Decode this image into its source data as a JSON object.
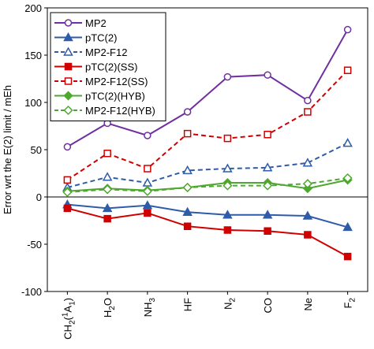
{
  "chart_data": {
    "type": "line",
    "ylabel": "Error wrt the E(2) limit / mEh",
    "ylim": [
      -100,
      200
    ],
    "ytick_step": 50,
    "grid": false,
    "legend_position": "top-left",
    "categories": [
      {
        "base": "CH",
        "sub": "2",
        "tail": "(",
        "sup": "1",
        "tail2": "A",
        "sub2": "1",
        "tail3": ")"
      },
      {
        "base": "H",
        "sub": "2",
        "tail": "O"
      },
      {
        "base": "NH",
        "sub": "3"
      },
      {
        "base": "HF"
      },
      {
        "base": "N",
        "sub": "2"
      },
      {
        "base": "CO"
      },
      {
        "base": "Ne"
      },
      {
        "base": "F",
        "sub": "2"
      }
    ],
    "series": [
      {
        "name": "MP2",
        "color": "#7030a0",
        "marker": "circle",
        "filled": false,
        "dashed": false,
        "values": [
          53,
          78,
          65,
          90,
          127,
          129,
          102,
          177
        ]
      },
      {
        "name": "pTC(2)",
        "color": "#2e5ca8",
        "marker": "triangle",
        "filled": true,
        "dashed": false,
        "values": [
          -8,
          -12,
          -9,
          -16,
          -19,
          -19,
          -20,
          -32
        ]
      },
      {
        "name": "MP2-F12",
        "color": "#2e5ca8",
        "marker": "triangle",
        "filled": false,
        "dashed": true,
        "values": [
          10,
          21,
          15,
          28,
          30,
          31,
          36,
          57
        ]
      },
      {
        "name": "pTC(2)(SS)",
        "color": "#d00000",
        "marker": "square",
        "filled": true,
        "dashed": false,
        "values": [
          -12,
          -23,
          -17,
          -31,
          -35,
          -36,
          -40,
          -63
        ]
      },
      {
        "name": "MP2-F12(SS)",
        "color": "#d00000",
        "marker": "square",
        "filled": false,
        "dashed": true,
        "values": [
          18,
          46,
          30,
          67,
          62,
          66,
          90,
          134
        ]
      },
      {
        "name": "pTC(2)(HYB)",
        "color": "#4ea72e",
        "marker": "diamond",
        "filled": true,
        "dashed": false,
        "values": [
          6,
          9,
          7,
          10,
          15,
          15,
          9,
          18
        ]
      },
      {
        "name": "MP2-F12(HYB)",
        "color": "#4ea72e",
        "marker": "diamond",
        "filled": false,
        "dashed": true,
        "values": [
          5,
          8,
          6,
          10,
          12,
          12,
          14,
          20
        ]
      }
    ]
  }
}
